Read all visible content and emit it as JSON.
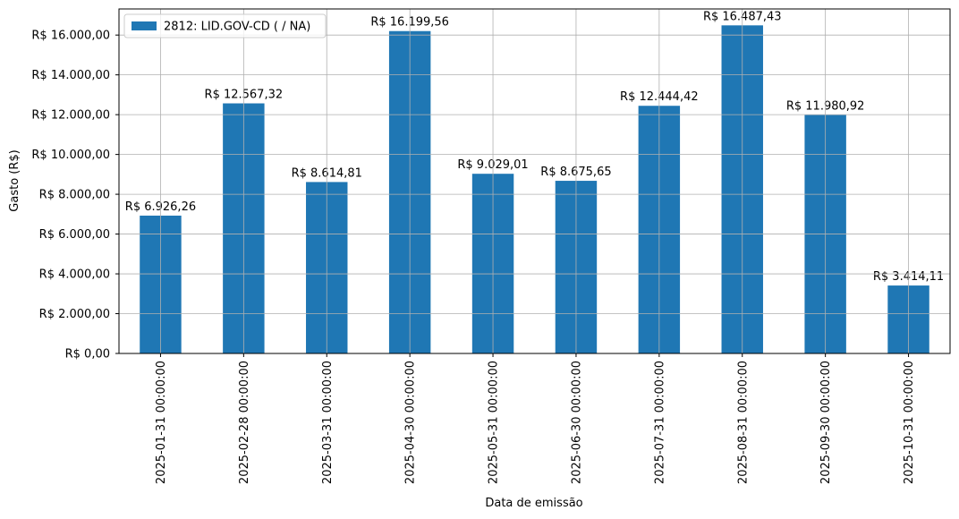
{
  "chart_data": {
    "type": "bar",
    "xlabel": "Data de emissão",
    "ylabel": "Gasto (R$)",
    "categories": [
      "2025-01-31 00:00:00",
      "2025-02-28 00:00:00",
      "2025-03-31 00:00:00",
      "2025-04-30 00:00:00",
      "2025-05-31 00:00:00",
      "2025-06-30 00:00:00",
      "2025-07-31 00:00:00",
      "2025-08-31 00:00:00",
      "2025-09-30 00:00:00",
      "2025-10-31 00:00:00"
    ],
    "series": [
      {
        "name": "2812: LID.GOV-CD ( / NA)",
        "color": "#1f77b4",
        "values": [
          6926.26,
          12567.32,
          8614.81,
          16199.56,
          9029.01,
          8675.65,
          12444.42,
          16487.43,
          11980.92,
          3414.11
        ],
        "value_labels": [
          "R$ 6.926,26",
          "R$ 12.567,32",
          "R$ 8.614,81",
          "R$ 16.199,56",
          "R$ 9.029,01",
          "R$ 8.675,65",
          "R$ 12.444,42",
          "R$ 16.487,43",
          "R$ 11.980,92",
          "R$ 3.414,11"
        ]
      }
    ],
    "ylim": [
      0,
      17312
    ],
    "yticks": [
      {
        "value": 0,
        "label": "R$ 0,00"
      },
      {
        "value": 2000,
        "label": "R$ 2.000,00"
      },
      {
        "value": 4000,
        "label": "R$ 4.000,00"
      },
      {
        "value": 6000,
        "label": "R$ 6.000,00"
      },
      {
        "value": 8000,
        "label": "R$ 8.000,00"
      },
      {
        "value": 10000,
        "label": "R$ 10.000,00"
      },
      {
        "value": 12000,
        "label": "R$ 12.000,00"
      },
      {
        "value": 14000,
        "label": "R$ 14.000,00"
      },
      {
        "value": 16000,
        "label": "R$ 16.000,00"
      }
    ],
    "grid": true,
    "legend": "upper left"
  }
}
